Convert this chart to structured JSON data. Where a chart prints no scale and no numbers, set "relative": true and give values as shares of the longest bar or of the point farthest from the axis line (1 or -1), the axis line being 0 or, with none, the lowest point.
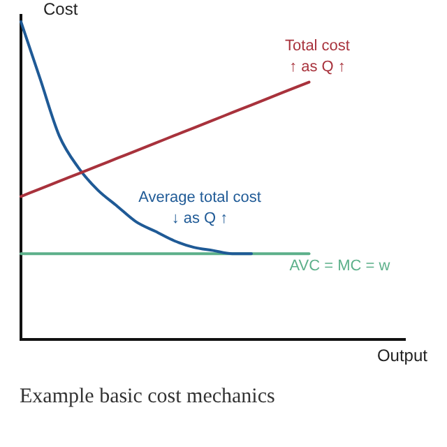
{
  "chart_data": {
    "type": "line",
    "relative": true,
    "xlabel": "Output",
    "ylabel": "Cost",
    "categories": [
      null,
      null,
      null,
      null,
      null,
      null,
      null,
      null,
      null,
      null,
      null,
      null,
      null,
      null,
      null,
      null,
      null,
      null,
      null,
      null,
      null
    ],
    "series": [
      {
        "name": "Total cost",
        "color": "#a8323c",
        "values": [
          0.45,
          0.474,
          0.498,
          0.522,
          0.546,
          0.57,
          0.594,
          0.618,
          0.642,
          0.666,
          0.69,
          0.714,
          0.738,
          0.762,
          0.786,
          0.81,
          null,
          null,
          null,
          null,
          null
        ]
      },
      {
        "name": "Average total cost",
        "color": "#1f5a96",
        "values": [
          1.0,
          0.82,
          0.64,
          0.54,
          0.47,
          0.42,
          0.37,
          0.34,
          0.31,
          0.29,
          0.28,
          0.27,
          0.27,
          null,
          null,
          null,
          null,
          null,
          null,
          null,
          null
        ]
      },
      {
        "name": "AVC = MC = w",
        "color": "#5cb08a",
        "values": [
          0.27,
          0.27,
          0.27,
          0.27,
          0.27,
          0.27,
          0.27,
          0.27,
          0.27,
          0.27,
          0.27,
          0.27,
          0.27,
          0.27,
          0.27,
          0.27,
          null,
          null,
          null,
          null,
          null
        ]
      }
    ],
    "annotations": [
      "↑ as Q ↑",
      "↓ as Q ↑",
      "Example basic cost mechanics"
    ]
  }
}
